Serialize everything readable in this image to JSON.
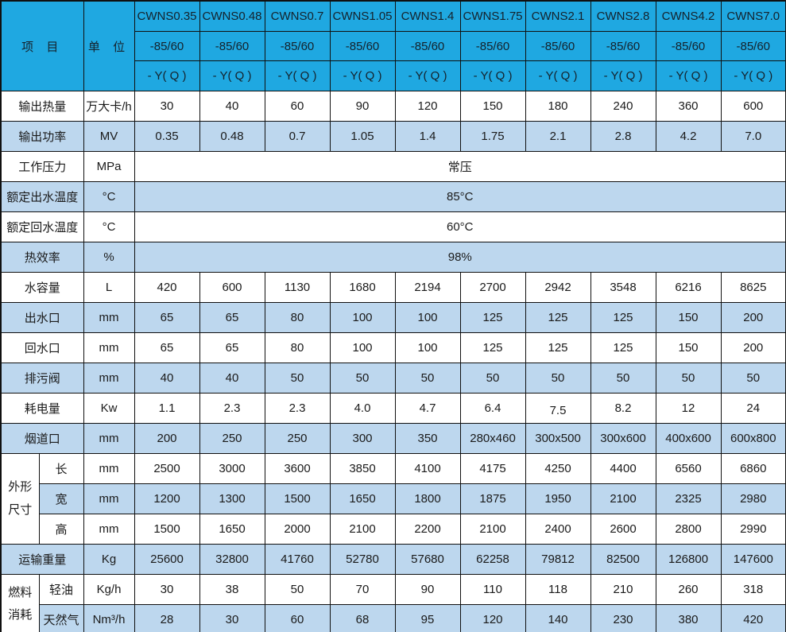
{
  "table": {
    "header": {
      "item_label": "项 目",
      "unit_label": "单 位",
      "models": [
        "CWNS0.35",
        "CWNS0.48",
        "CWNS0.7",
        "CWNS1.05",
        "CWNS1.4",
        "CWNS1.75",
        "CWNS2.1",
        "CWNS2.8",
        "CWNS4.2",
        "CWNS7.0"
      ],
      "subrow1": "-85/60",
      "subrow2": "- Y( Q )"
    },
    "rows": [
      {
        "type": "data",
        "label": "输出热量",
        "unit": "万大卡/h",
        "values": [
          "30",
          "40",
          "60",
          "90",
          "120",
          "150",
          "180",
          "240",
          "360",
          "600"
        ]
      },
      {
        "type": "data",
        "label": "输出功率",
        "unit": "MV",
        "values": [
          "0.35",
          "0.48",
          "0.7",
          "1.05",
          "1.4",
          "1.75",
          "2.1",
          "2.8",
          "4.2",
          "7.0"
        ]
      },
      {
        "type": "merged",
        "label": "工作压力",
        "unit": "MPa",
        "value": "常压"
      },
      {
        "type": "merged",
        "label": "额定出水温度",
        "unit": "°C",
        "value": "85°C"
      },
      {
        "type": "merged",
        "label": "额定回水温度",
        "unit": "°C",
        "value": "60°C"
      },
      {
        "type": "merged",
        "label": "热效率",
        "unit": "%",
        "value": "98%"
      },
      {
        "type": "data",
        "label": "水容量",
        "unit": "L",
        "values": [
          "420",
          "600",
          "1130",
          "1680",
          "2194",
          "2700",
          "2942",
          "3548",
          "6216",
          "8625"
        ]
      },
      {
        "type": "data",
        "label": "出水口",
        "unit": "mm",
        "values": [
          "65",
          "65",
          "80",
          "100",
          "100",
          "125",
          "125",
          "125",
          "150",
          "200"
        ]
      },
      {
        "type": "data",
        "label": "回水口",
        "unit": "mm",
        "values": [
          "65",
          "65",
          "80",
          "100",
          "100",
          "125",
          "125",
          "125",
          "150",
          "200"
        ]
      },
      {
        "type": "data",
        "label": "排污阀",
        "unit": "mm",
        "values": [
          "40",
          "40",
          "50",
          "50",
          "50",
          "50",
          "50",
          "50",
          "50",
          "50"
        ]
      },
      {
        "type": "data",
        "label": "耗电量",
        "unit": "Kw",
        "values": [
          "1.1",
          "2.3",
          "2.3",
          "4.0",
          "4.7",
          "6.4",
          "7.5",
          "8.2",
          "12",
          "24"
        ],
        "raised_value_index": 6
      },
      {
        "type": "data",
        "label": "烟道口",
        "unit": "mm",
        "values": [
          "200",
          "250",
          "250",
          "300",
          "350",
          "280x460",
          "300x500",
          "300x600",
          "400x600",
          "600x800"
        ]
      },
      {
        "type": "group",
        "label": "外形尺寸",
        "label_lines": [
          "外形",
          "尺寸"
        ],
        "subrows": [
          {
            "label": "长",
            "unit": "mm",
            "values": [
              "2500",
              "3000",
              "3600",
              "3850",
              "4100",
              "4175",
              "4250",
              "4400",
              "6560",
              "6860"
            ]
          },
          {
            "label": "宽",
            "unit": "mm",
            "values": [
              "1200",
              "1300",
              "1500",
              "1650",
              "1800",
              "1875",
              "1950",
              "2100",
              "2325",
              "2980"
            ]
          },
          {
            "label": "高",
            "unit": "mm",
            "values": [
              "1500",
              "1650",
              "2000",
              "2100",
              "2200",
              "2100",
              "2400",
              "2600",
              "2800",
              "2990"
            ]
          }
        ]
      },
      {
        "type": "data",
        "label": "运输重量",
        "unit": "Kg",
        "values": [
          "25600",
          "32800",
          "41760",
          "52780",
          "57680",
          "62258",
          "79812",
          "82500",
          "126800",
          "147600"
        ]
      },
      {
        "type": "group",
        "label": "燃料消耗",
        "label_lines": [
          "燃料",
          "消耗"
        ],
        "subrows": [
          {
            "label": "轻油",
            "unit": "Kg/h",
            "values": [
              "30",
              "38",
              "50",
              "70",
              "90",
              "110",
              "118",
              "210",
              "260",
              "318"
            ]
          },
          {
            "label": "天然气",
            "unit": "Nm³/h",
            "values": [
              "28",
              "30",
              "60",
              "68",
              "95",
              "120",
              "140",
              "230",
              "380",
              "420"
            ]
          }
        ]
      }
    ],
    "colors": {
      "header_bg": "#1FA8E1",
      "alt_row_bg": "#BDD7EE",
      "row_bg": "#FFFFFF",
      "grid": "#101010",
      "text": "#1A1A1A"
    }
  }
}
